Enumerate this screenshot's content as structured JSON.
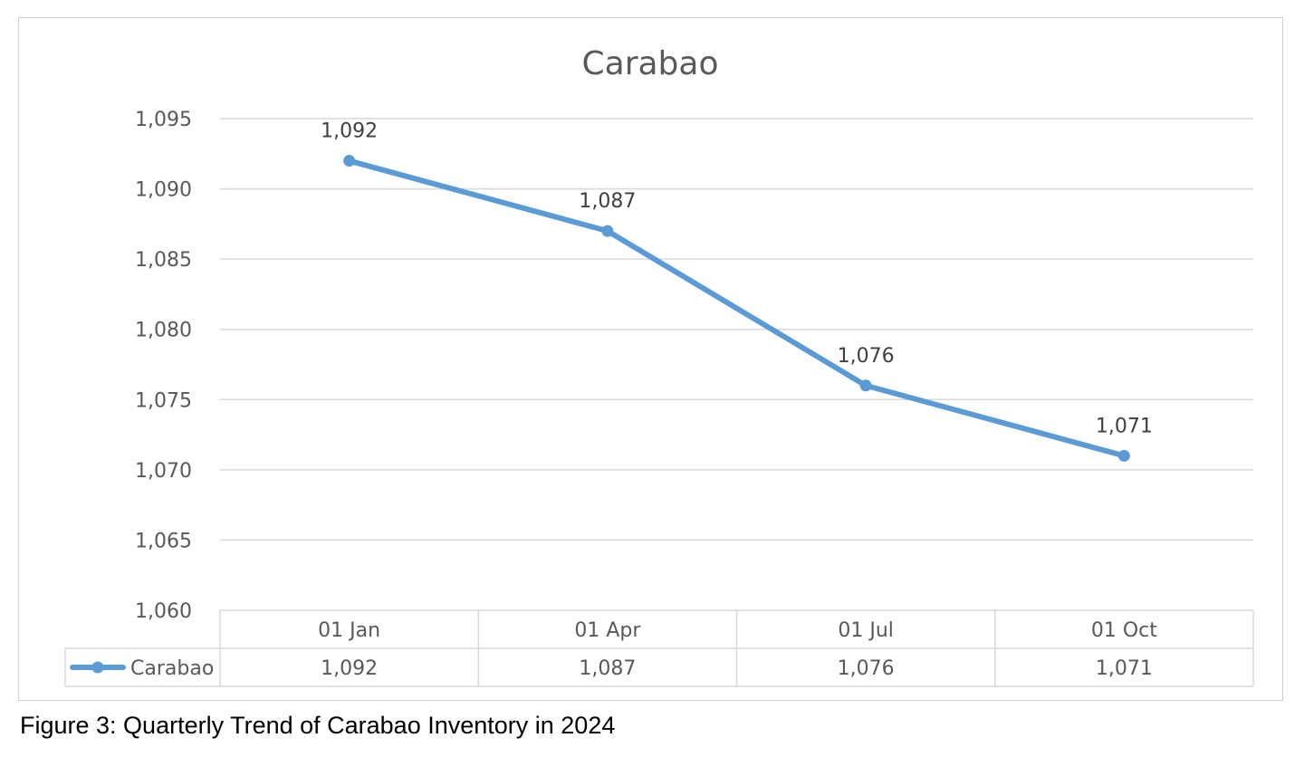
{
  "caption": "Figure 3: Quarterly Trend of Carabao Inventory in 2024",
  "chart_data": {
    "type": "line",
    "title": "Carabao",
    "xlabel": "",
    "ylabel": "",
    "categories": [
      "01 Jan",
      "01 Apr",
      "01 Jul",
      "01 Oct"
    ],
    "series": [
      {
        "name": "Carabao",
        "values": [
          1092,
          1087,
          1076,
          1071
        ],
        "labels": [
          "1,092",
          "1,087",
          "1,076",
          "1,071"
        ],
        "color": "#5b9bd5"
      }
    ],
    "ylim": [
      1060,
      1095
    ],
    "yticks": [
      "1,060",
      "1,065",
      "1,070",
      "1,075",
      "1,080",
      "1,085",
      "1,090",
      "1,095"
    ],
    "grid": true,
    "data_labels": true,
    "data_table": true,
    "legend": "data-table"
  }
}
